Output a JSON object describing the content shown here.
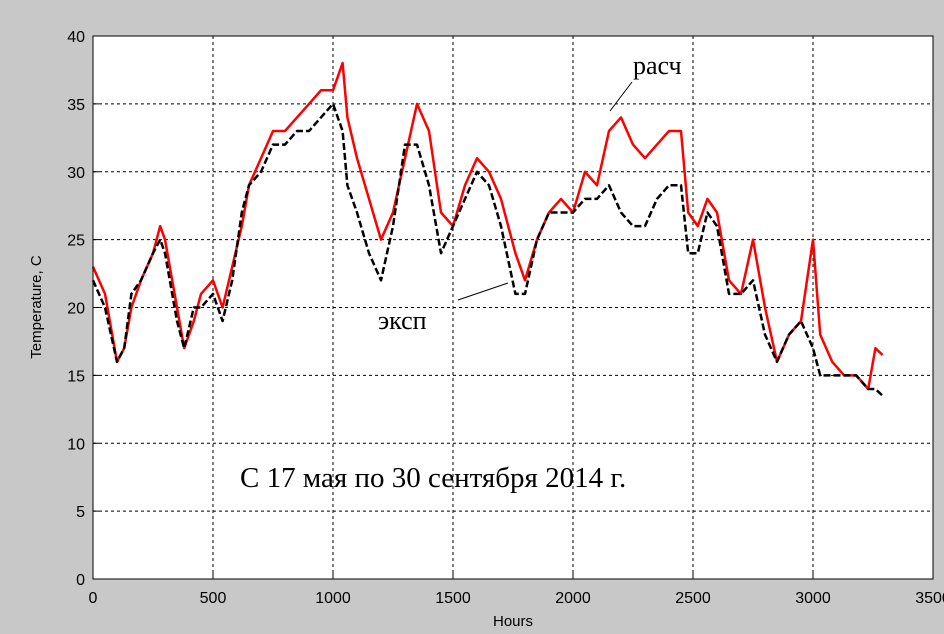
{
  "chart_data": {
    "type": "line",
    "title": "",
    "xlabel": "Hours",
    "ylabel": "Temperature, C",
    "xlim": [
      0,
      3500
    ],
    "ylim": [
      0,
      40
    ],
    "xticks": [
      0,
      500,
      1000,
      1500,
      2000,
      2500,
      3000,
      3500
    ],
    "yticks": [
      0,
      5,
      10,
      15,
      20,
      25,
      30,
      35,
      40
    ],
    "grid": true,
    "legend": "none",
    "annotations": [
      {
        "text": "расч",
        "points_to_series": "расч"
      },
      {
        "text": "эксп",
        "points_to_series": "эксп"
      },
      {
        "text": "С 17 мая по 30 сентября 2014 г."
      }
    ],
    "series": [
      {
        "name": "расч",
        "color": "#ff0000",
        "style": "solid",
        "x": [
          0,
          50,
          100,
          130,
          160,
          200,
          250,
          280,
          300,
          350,
          380,
          420,
          450,
          500,
          540,
          580,
          620,
          650,
          700,
          750,
          800,
          850,
          900,
          950,
          1000,
          1040,
          1060,
          1100,
          1150,
          1200,
          1250,
          1300,
          1350,
          1400,
          1450,
          1500,
          1550,
          1600,
          1650,
          1700,
          1760,
          1800,
          1850,
          1900,
          1950,
          2000,
          2050,
          2100,
          2150,
          2200,
          2250,
          2300,
          2350,
          2400,
          2450,
          2480,
          2520,
          2560,
          2600,
          2650,
          2700,
          2750,
          2800,
          2850,
          2900,
          2950,
          3000,
          3030,
          3080,
          3130,
          3180,
          3230,
          3260,
          3290
        ],
        "y": [
          23,
          21,
          16,
          17,
          20,
          22,
          24,
          26,
          25,
          20,
          17,
          19,
          21,
          22,
          20,
          23,
          26,
          29,
          31,
          33,
          33,
          34,
          35,
          36,
          36,
          38,
          34,
          31,
          28,
          25,
          27,
          31,
          35,
          33,
          27,
          26,
          29,
          31,
          30,
          28,
          24,
          22,
          25,
          27,
          28,
          27,
          30,
          29,
          33,
          34,
          32,
          31,
          32,
          33,
          33,
          27,
          26,
          28,
          27,
          22,
          21,
          25,
          20,
          16,
          18,
          19,
          25,
          18,
          16,
          15,
          15,
          14,
          17,
          16.5
        ]
      },
      {
        "name": "эксп",
        "color": "#000000",
        "style": "dashed",
        "x": [
          0,
          50,
          100,
          130,
          160,
          200,
          250,
          280,
          300,
          350,
          380,
          420,
          450,
          500,
          540,
          580,
          620,
          650,
          700,
          750,
          800,
          850,
          900,
          950,
          1000,
          1040,
          1060,
          1100,
          1150,
          1200,
          1250,
          1300,
          1350,
          1400,
          1450,
          1500,
          1550,
          1600,
          1650,
          1700,
          1760,
          1800,
          1850,
          1900,
          1950,
          2000,
          2050,
          2100,
          2150,
          2200,
          2250,
          2300,
          2350,
          2400,
          2450,
          2480,
          2520,
          2560,
          2600,
          2650,
          2700,
          2750,
          2800,
          2850,
          2900,
          2950,
          3000,
          3030,
          3080,
          3130,
          3180,
          3230,
          3260,
          3290
        ],
        "y": [
          22,
          20,
          16,
          17,
          21,
          22,
          24,
          25,
          24,
          19,
          17,
          20,
          20,
          21,
          19,
          22,
          27,
          29,
          30,
          32,
          32,
          33,
          33,
          34,
          35,
          33,
          29,
          27,
          24,
          22,
          26,
          32,
          32,
          29,
          24,
          26,
          28,
          30,
          29,
          26,
          21,
          21,
          25,
          27,
          27,
          27,
          28,
          28,
          29,
          27,
          26,
          26,
          28,
          29,
          29,
          24,
          24,
          27,
          26,
          21,
          21,
          22,
          18,
          16,
          18,
          19,
          17,
          15,
          15,
          15,
          15,
          14,
          14,
          13.5
        ]
      }
    ]
  }
}
